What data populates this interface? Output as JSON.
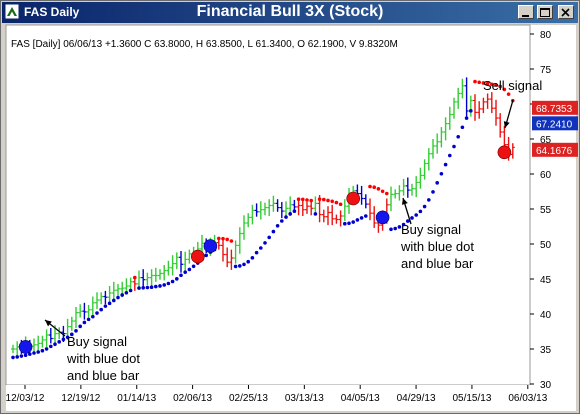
{
  "window": {
    "title": "FAS Daily",
    "chart_title": "Financial Bull 3X (Stock)",
    "buttons": [
      "minimize-icon",
      "maximize-icon",
      "close-icon"
    ]
  },
  "colors": {
    "up_bar": "#33cc33",
    "down_bar": "#0000cc",
    "sar_dot": "#0000cc",
    "buy_circle": "#1515ee",
    "sell_circle": "#ee1111",
    "red_dash": "#ff0000",
    "price_tag_red": "#dd2222",
    "price_tag_blue": "#1133bb"
  },
  "chart_data": {
    "type": "ohlc",
    "info_line": "FAS [Daily] 06/06/13  +1.3600 C 63.8000, H 63.8500, L 61.3400, O 62.1900, V 9.8320M",
    "x_tick_labels": [
      "12/03/12",
      "12/19/12",
      "01/14/13",
      "02/06/13",
      "02/25/13",
      "03/13/13",
      "04/05/13",
      "04/29/13",
      "05/15/13",
      "06/03/13"
    ],
    "y_ticks": [
      30,
      35,
      40,
      45,
      50,
      55,
      60,
      65,
      70,
      75,
      80
    ],
    "ylim": [
      30,
      80
    ],
    "price_tags": [
      {
        "value": "68.7353",
        "price": 68.74,
        "color": "red"
      },
      {
        "value": "67.2410",
        "price": 67.24,
        "color": "blue"
      },
      {
        "value": "64.1676",
        "price": 64.17,
        "color": "red"
      }
    ],
    "annotations": [
      {
        "id": "buy1",
        "lines": [
          "Buy signal",
          "with blue dot",
          "and blue bar"
        ]
      },
      {
        "id": "buy2",
        "lines": [
          "Buy signal",
          "with blue dot",
          "and blue bar"
        ]
      },
      {
        "id": "sell",
        "lines": [
          "Sell signal"
        ]
      }
    ],
    "closes": [
      35.0,
      35.3,
      35.0,
      35.6,
      35.4,
      35.6,
      35.8,
      36.3,
      37.0,
      36.5,
      37.2,
      37.4,
      37.2,
      38.2,
      39.0,
      40.2,
      40.4,
      40.3,
      40.6,
      41.6,
      42.0,
      42.5,
      42.4,
      43.0,
      43.4,
      43.6,
      43.7,
      44.0,
      44.6,
      44.3,
      45.2,
      44.9,
      45.2,
      45.5,
      45.5,
      45.8,
      46.2,
      46.6,
      47.2,
      48.1,
      47.1,
      47.8,
      48.6,
      48.8,
      49.3,
      50.1,
      49.5,
      50.0,
      50.2,
      49.8,
      48.5,
      47.4,
      48.0,
      49.8,
      51.5,
      53.0,
      53.8,
      54.8,
      54.6,
      54.9,
      55.2,
      55.5,
      55.8,
      55.2,
      54.7,
      55.1,
      55.6,
      55.3,
      55.5,
      54.9,
      55.4,
      55.1,
      55.8,
      54.2,
      53.9,
      54.5,
      53.6,
      53.5,
      54.0,
      55.4,
      56.8,
      57.6,
      57.2,
      56.5,
      55.7,
      54.4,
      53.0,
      52.7,
      54.1,
      55.6,
      57.1,
      57.2,
      57.6,
      58.3,
      57.7,
      57.9,
      58.8,
      59.8,
      61.5,
      62.9,
      64.0,
      64.6,
      66.0,
      67.2,
      68.5,
      70.3,
      71.5,
      72.6,
      69.0,
      70.5,
      68.8,
      69.3,
      70.3,
      70.7,
      69.4,
      68.0,
      66.0,
      64.2,
      62.8,
      63.8
    ],
    "buy_signals": [
      3,
      47,
      88
    ],
    "sell_signals": [
      44,
      81,
      117
    ]
  }
}
